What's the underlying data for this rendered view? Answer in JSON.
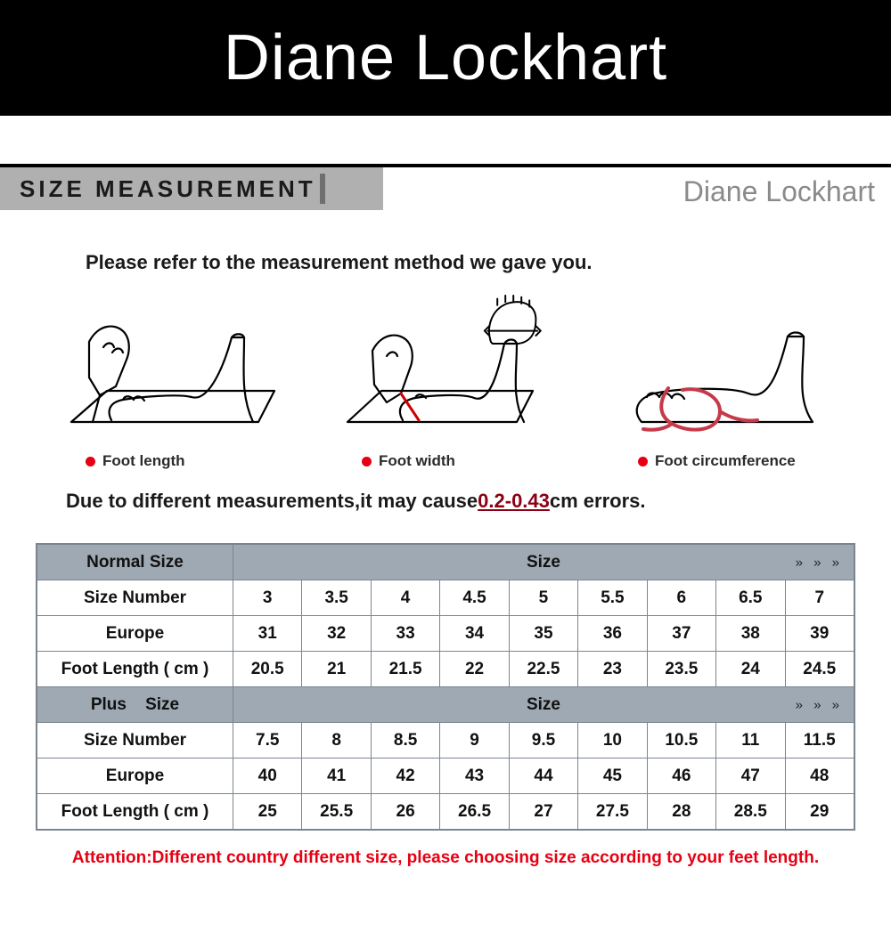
{
  "banner": {
    "title": "Diane Lockhart"
  },
  "section": {
    "label": "SIZE MEASUREMENT",
    "brand": "Diane Lockhart"
  },
  "intro": "Please refer to the measurement method we gave you.",
  "diagrams": {
    "captions": [
      "Foot length",
      "Foot width",
      "Foot circumference"
    ],
    "dot_color": "#e60012",
    "circumference_color": "#c53a4a"
  },
  "note": {
    "prefix": "Due to different measurements,it may cause",
    "error_range": "0.2-0.43",
    "suffix": "cm errors."
  },
  "table": {
    "header_bg": "#9ea9b3",
    "border_color": "#7a8590",
    "arrows": "»  »  »",
    "sections": [
      {
        "title_left": "Normal Size",
        "title_right": "Size",
        "rows": [
          {
            "label": "Size Number",
            "cells": [
              "3",
              "3.5",
              "4",
              "4.5",
              "5",
              "5.5",
              "6",
              "6.5",
              "7"
            ]
          },
          {
            "label": "Europe",
            "cells": [
              "31",
              "32",
              "33",
              "34",
              "35",
              "36",
              "37",
              "38",
              "39"
            ]
          },
          {
            "label": "Foot Length ( cm )",
            "cells": [
              "20.5",
              "21",
              "21.5",
              "22",
              "22.5",
              "23",
              "23.5",
              "24",
              "24.5"
            ]
          }
        ]
      },
      {
        "title_left": "Plus    Size",
        "title_right": "Size",
        "rows": [
          {
            "label": "Size Number",
            "cells": [
              "7.5",
              "8",
              "8.5",
              "9",
              "9.5",
              "10",
              "10.5",
              "11",
              "11.5"
            ]
          },
          {
            "label": "Europe",
            "cells": [
              "40",
              "41",
              "42",
              "43",
              "44",
              "45",
              "46",
              "47",
              "48"
            ]
          },
          {
            "label": "Foot Length ( cm )",
            "cells": [
              "25",
              "25.5",
              "26",
              "26.5",
              "27",
              "27.5",
              "28",
              "28.5",
              "29"
            ]
          }
        ]
      }
    ]
  },
  "attention": "Attention:Different country different size, please choosing size according to your feet length."
}
